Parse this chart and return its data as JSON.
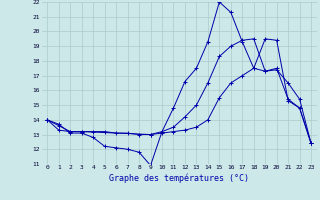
{
  "xlabel": "Graphe des températures (°C)",
  "ylabel_left_ticks": [
    11,
    12,
    13,
    14,
    15,
    16,
    17,
    18,
    19,
    20,
    21,
    22
  ],
  "xlim": [
    -0.5,
    23.5
  ],
  "ylim": [
    11,
    22
  ],
  "bg_color": "#cce8e8",
  "grid_color": "#aacccc",
  "line_color": "#0000aa",
  "series": [
    {
      "x": [
        0,
        1,
        2,
        3,
        4,
        5,
        6,
        7,
        8,
        9,
        10,
        11,
        12,
        13,
        14,
        15,
        16,
        17,
        18,
        19,
        20,
        21,
        22,
        23
      ],
      "y": [
        14,
        13.7,
        13.1,
        13.1,
        12.8,
        12.2,
        12.1,
        12.0,
        11.8,
        10.9,
        13.2,
        14.8,
        16.6,
        17.5,
        19.3,
        22.0,
        21.3,
        19.3,
        17.5,
        19.5,
        19.4,
        15.3,
        14.8,
        12.4
      ]
    },
    {
      "x": [
        0,
        1,
        2,
        3,
        4,
        5,
        6,
        7,
        8,
        9,
        10,
        11,
        12,
        13,
        14,
        15,
        16,
        17,
        18,
        19,
        20,
        21,
        22,
        23
      ],
      "y": [
        14,
        13.6,
        13.2,
        13.2,
        13.2,
        13.2,
        13.1,
        13.1,
        13.0,
        13.0,
        13.2,
        13.5,
        14.2,
        15.0,
        16.5,
        18.3,
        19.0,
        19.4,
        19.5,
        17.3,
        17.4,
        16.5,
        15.4,
        12.4
      ]
    },
    {
      "x": [
        0,
        1,
        2,
        3,
        9,
        10,
        11,
        12,
        13,
        14,
        15,
        16,
        17,
        18,
        19,
        20,
        21,
        22,
        23
      ],
      "y": [
        14,
        13.3,
        13.2,
        13.2,
        13.0,
        13.1,
        13.2,
        13.3,
        13.5,
        14.0,
        15.5,
        16.5,
        17.0,
        17.5,
        17.3,
        17.5,
        15.4,
        14.8,
        12.4
      ]
    }
  ]
}
